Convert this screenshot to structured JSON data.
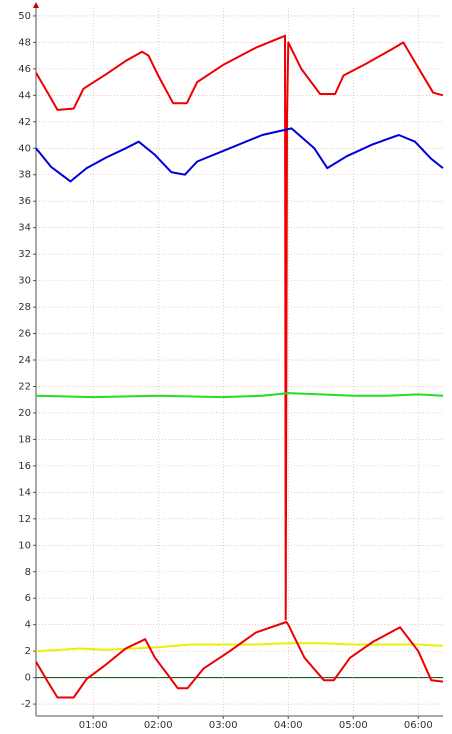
{
  "chart_data": {
    "type": "line",
    "xlim": [
      0.12,
      6.38
    ],
    "ylim": [
      -2.9,
      50.6
    ],
    "xticks": [
      {
        "value": 1,
        "label": "01:00"
      },
      {
        "value": 2,
        "label": "02:00"
      },
      {
        "value": 3,
        "label": "03:00"
      },
      {
        "value": 4,
        "label": "04:00"
      },
      {
        "value": 5,
        "label": "05:00"
      },
      {
        "value": 6,
        "label": "06:00"
      }
    ],
    "yticks": [
      -2,
      0,
      2,
      4,
      6,
      8,
      10,
      12,
      14,
      16,
      18,
      20,
      22,
      24,
      26,
      28,
      30,
      32,
      34,
      36,
      38,
      40,
      42,
      44,
      46,
      48,
      50
    ],
    "grid": true,
    "zero_line": true,
    "series": [
      {
        "color": "#ee0000",
        "x": [
          0.12,
          0.3,
          0.45,
          0.7,
          0.85,
          1.2,
          1.5,
          1.75,
          1.85,
          2.0,
          2.23,
          2.44,
          2.6,
          3.0,
          3.5,
          3.95,
          3.96,
          3.98,
          4.0,
          4.2,
          4.49,
          4.72,
          4.85,
          5.2,
          5.6,
          5.77,
          5.95,
          6.23,
          6.38
        ],
        "values": [
          45.7,
          44.2,
          42.9,
          43.0,
          44.5,
          45.6,
          46.6,
          47.3,
          47.0,
          45.5,
          43.4,
          43.4,
          45.0,
          46.3,
          47.6,
          48.5,
          4.4,
          42.3,
          48.0,
          46.0,
          44.1,
          44.1,
          45.5,
          46.4,
          47.5,
          48.0,
          46.5,
          44.2,
          44.0
        ]
      },
      {
        "color": "#0000dd",
        "x": [
          0.12,
          0.35,
          0.65,
          0.9,
          1.2,
          1.5,
          1.7,
          1.95,
          2.2,
          2.41,
          2.6,
          3.0,
          3.6,
          4.05,
          4.4,
          4.6,
          4.9,
          5.3,
          5.7,
          5.95,
          6.2,
          6.38
        ],
        "values": [
          40.0,
          38.6,
          37.5,
          38.5,
          39.3,
          40.0,
          40.5,
          39.5,
          38.2,
          38.0,
          39.0,
          39.8,
          41.0,
          41.5,
          40.0,
          38.5,
          39.4,
          40.3,
          41.0,
          40.5,
          39.2,
          38.5
        ]
      },
      {
        "color": "#22dd22",
        "x": [
          0.12,
          1.0,
          2.0,
          3.0,
          3.6,
          4.0,
          4.5,
          5.0,
          5.5,
          6.0,
          6.38
        ],
        "values": [
          21.3,
          21.2,
          21.3,
          21.2,
          21.3,
          21.5,
          21.4,
          21.3,
          21.3,
          21.4,
          21.3
        ]
      },
      {
        "color": "#eeee00",
        "x": [
          0.12,
          0.5,
          0.8,
          1.2,
          1.6,
          2.0,
          2.5,
          3.0,
          3.5,
          4.0,
          4.5,
          5.0,
          5.5,
          6.0,
          6.38
        ],
        "values": [
          2.0,
          2.1,
          2.2,
          2.1,
          2.2,
          2.3,
          2.5,
          2.5,
          2.5,
          2.6,
          2.6,
          2.5,
          2.5,
          2.5,
          2.4
        ]
      },
      {
        "color": "#ee0000",
        "x": [
          0.12,
          0.3,
          0.45,
          0.7,
          0.9,
          1.2,
          1.5,
          1.8,
          1.95,
          2.15,
          2.3,
          2.45,
          2.7,
          3.1,
          3.5,
          3.97,
          4.0,
          4.25,
          4.55,
          4.7,
          4.95,
          5.3,
          5.72,
          6.0,
          6.2,
          6.38
        ],
        "values": [
          1.2,
          -0.3,
          -1.5,
          -1.5,
          -0.1,
          1.0,
          2.2,
          2.9,
          1.5,
          0.2,
          -0.8,
          -0.8,
          0.7,
          2.0,
          3.4,
          4.2,
          4.0,
          1.5,
          -0.2,
          -0.2,
          1.5,
          2.7,
          3.8,
          2.0,
          -0.2,
          -0.3
        ]
      }
    ]
  }
}
